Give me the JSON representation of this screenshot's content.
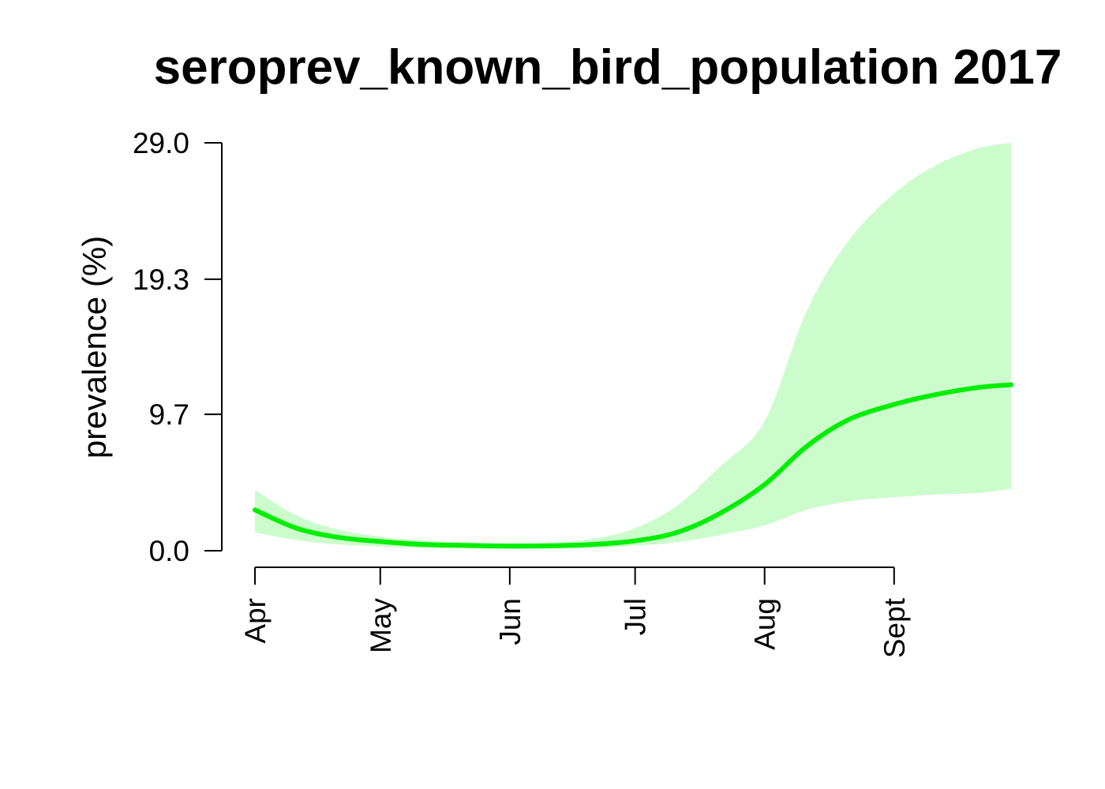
{
  "chart_data": {
    "type": "area",
    "title": "seroprev_known_bird_population 2017",
    "xlabel": "",
    "ylabel": "prevalence (%)",
    "ylim": [
      0.0,
      29.0
    ],
    "y_ticks": [
      "0.0",
      "9.7",
      "19.3",
      "29.0"
    ],
    "y_tick_values": [
      0.0,
      9.7,
      19.3,
      29.0
    ],
    "x_ticks": [
      "Apr",
      "May",
      "Jun",
      "Jul",
      "Aug",
      "Sept"
    ],
    "x_tick_dates": [
      "2017-04-01",
      "2017-05-01",
      "2017-06-01",
      "2017-07-01",
      "2017-08-01",
      "2017-09-01"
    ],
    "grid": false,
    "colors": {
      "line": "#00ee00",
      "band": "#ccfccc"
    },
    "series": [
      {
        "x": [
          "2017-04-01",
          "2017-04-11",
          "2017-04-21",
          "2017-05-01",
          "2017-05-11",
          "2017-05-21",
          "2017-06-01",
          "2017-06-11",
          "2017-06-21",
          "2017-07-01",
          "2017-07-11",
          "2017-07-21",
          "2017-08-01",
          "2017-08-11",
          "2017-08-21",
          "2017-09-01",
          "2017-09-11",
          "2017-09-21",
          "2017-09-29"
        ],
        "y": [
          2.9,
          1.6,
          0.95,
          0.65,
          0.45,
          0.38,
          0.33,
          0.35,
          0.45,
          0.7,
          1.3,
          2.6,
          4.7,
          7.4,
          9.3,
          10.4,
          11.1,
          11.6,
          11.8
        ],
        "lower": [
          1.3,
          0.75,
          0.45,
          0.3,
          0.2,
          0.15,
          0.12,
          0.14,
          0.18,
          0.35,
          0.6,
          1.1,
          1.8,
          2.9,
          3.5,
          3.8,
          4.0,
          4.1,
          4.4
        ],
        "upper": [
          4.3,
          2.5,
          1.5,
          1.0,
          0.75,
          0.6,
          0.55,
          0.6,
          0.85,
          1.6,
          3.2,
          5.9,
          9.2,
          17.0,
          22.0,
          25.4,
          27.4,
          28.6,
          29.0
        ]
      }
    ]
  }
}
